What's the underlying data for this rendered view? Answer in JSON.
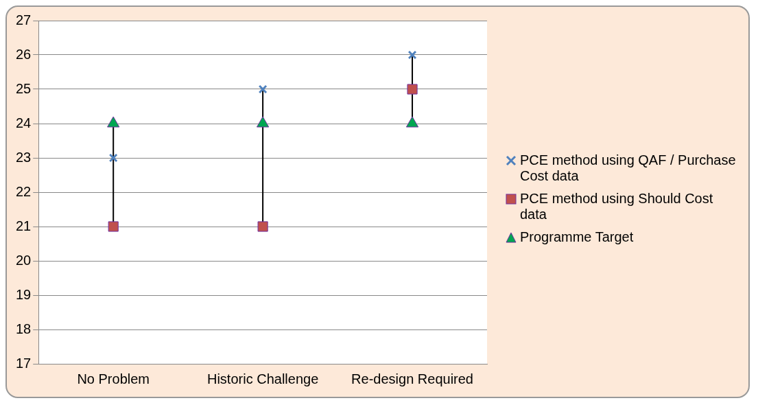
{
  "chart_data": {
    "type": "scatter",
    "categories": [
      "No Problem",
      "Historic Challenge",
      "Re-design Required"
    ],
    "series": [
      {
        "name": "PCE method using QAF / Purchase Cost data",
        "color": "#4f81bd",
        "marker": "cross",
        "values": [
          23,
          25,
          26
        ]
      },
      {
        "name": "PCE method using Should Cost data",
        "color": "#c0504d",
        "marker": "square",
        "values": [
          21,
          21,
          25
        ]
      },
      {
        "name": "Programme Target",
        "color": "#00a651",
        "marker": "triangle",
        "values": [
          24,
          24,
          24
        ]
      }
    ],
    "ylim": [
      17,
      27
    ],
    "yticks": [
      17,
      18,
      19,
      20,
      21,
      22,
      23,
      24,
      25,
      26,
      27
    ],
    "grid": "y",
    "legend": "right"
  }
}
